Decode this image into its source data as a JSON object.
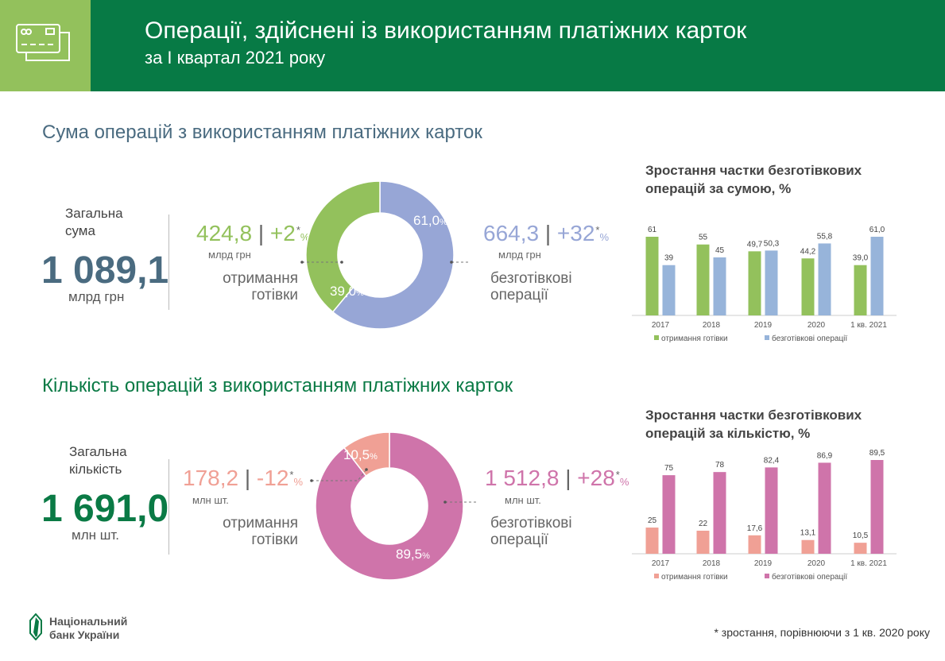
{
  "header": {
    "title": "Операції, здійснені із використанням платіжних карток",
    "subtitle": "за I квартал 2021 року",
    "icon": "credit-cards-icon"
  },
  "colors": {
    "header_light": "#93c15c",
    "header_dark": "#077a45",
    "sum_title": "#4a6b80",
    "count_title": "#0a7a45",
    "cash_sum": "#93c15c",
    "cashless_sum": "#97a6d6",
    "cash_count": "#f0a095",
    "cashless_count": "#cf74aa"
  },
  "sum_section": {
    "title": "Сума операцій з використанням платіжних карток",
    "total_label_1": "Загальна",
    "total_label_2": "сума",
    "total_value": "1 089,1",
    "total_unit": "млрд грн",
    "cash": {
      "value": "424,8",
      "sep": "|",
      "growth": "+2",
      "star": "*",
      "pct": "%",
      "unit": "млрд грн",
      "label_1": "отримання",
      "label_2": "готівки"
    },
    "cashless": {
      "value": "664,3",
      "sep": "|",
      "growth": "+32",
      "star": "*",
      "pct": "%",
      "unit": "млрд грн",
      "label_1": "безготівкові",
      "label_2": "операції"
    },
    "chart_title_1": "Зростання частки безготівкових",
    "chart_title_2": "операцій за сумою, %"
  },
  "count_section": {
    "title": "Кількість операцій з використанням платіжних карток",
    "total_label_1": "Загальна",
    "total_label_2": "кількість",
    "total_value": "1 691,0",
    "total_unit": "млн шт.",
    "cash": {
      "value": "178,2",
      "sep": "|",
      "growth": "-12",
      "star": "*",
      "pct": "%",
      "unit": "млн шт.",
      "label_1": "отримання",
      "label_2": "готівки"
    },
    "cashless": {
      "value": "1 512,8",
      "sep": "|",
      "growth": "+28",
      "star": "*",
      "pct": "%",
      "unit": "млн шт.",
      "label_1": "безготівкові",
      "label_2": "операції"
    },
    "chart_title_1": "Зростання частки безготівкових",
    "chart_title_2": "операцій за кількістю, %"
  },
  "chart_data": [
    {
      "type": "pie",
      "donut": true,
      "categories": [
        "безготівкові операції",
        "отримання готівки"
      ],
      "values": [
        61.0,
        39.0
      ],
      "labels": [
        "61,0",
        "39,0"
      ],
      "unit": "%",
      "colors": [
        "#97a6d6",
        "#93c15c"
      ]
    },
    {
      "type": "bar",
      "title": "Зростання частки безготівкових операцій за сумою, %",
      "categories": [
        "2017",
        "2018",
        "2019",
        "2020",
        "1 кв. 2021"
      ],
      "series": [
        {
          "name": "отримання готівки",
          "values": [
            61,
            55,
            49.7,
            44.2,
            39.0
          ],
          "labels": [
            "61",
            "55",
            "49,7",
            "44,2",
            "39,0"
          ],
          "color": "#93c15c"
        },
        {
          "name": "безготівкові операції",
          "values": [
            39,
            45,
            50.3,
            55.8,
            61.0
          ],
          "labels": [
            "39",
            "45",
            "50,3",
            "55,8",
            "61,0"
          ],
          "color": "#97b4da"
        }
      ],
      "ylim": [
        0,
        61
      ],
      "grid": false,
      "legend": "bottom"
    },
    {
      "type": "pie",
      "donut": true,
      "categories": [
        "безготівкові операції",
        "отримання готівки"
      ],
      "values": [
        89.5,
        10.5
      ],
      "labels": [
        "89,5",
        "10,5"
      ],
      "unit": "%",
      "colors": [
        "#cf74aa",
        "#f0a095"
      ]
    },
    {
      "type": "bar",
      "title": "Зростання частки безготівкових операцій за кількістю, %",
      "categories": [
        "2017",
        "2018",
        "2019",
        "2020",
        "1 кв. 2021"
      ],
      "series": [
        {
          "name": "отримання готівки",
          "values": [
            25,
            22,
            17.6,
            13.1,
            10.5
          ],
          "labels": [
            "25",
            "22",
            "17,6",
            "13,1",
            "10,5"
          ],
          "color": "#f0a095"
        },
        {
          "name": "безготівкові операції",
          "values": [
            75,
            78,
            82.4,
            86.9,
            89.5
          ],
          "labels": [
            "75",
            "78",
            "82,4",
            "86,9",
            "89,5"
          ],
          "color": "#cf74aa"
        }
      ],
      "ylim": [
        0,
        89.5
      ],
      "grid": false,
      "legend": "bottom"
    }
  ],
  "footer": {
    "logo_line_1": "Національний",
    "logo_line_2": "банк України",
    "footnote": "* зростання, порівнюючи з 1 кв. 2020 року"
  }
}
